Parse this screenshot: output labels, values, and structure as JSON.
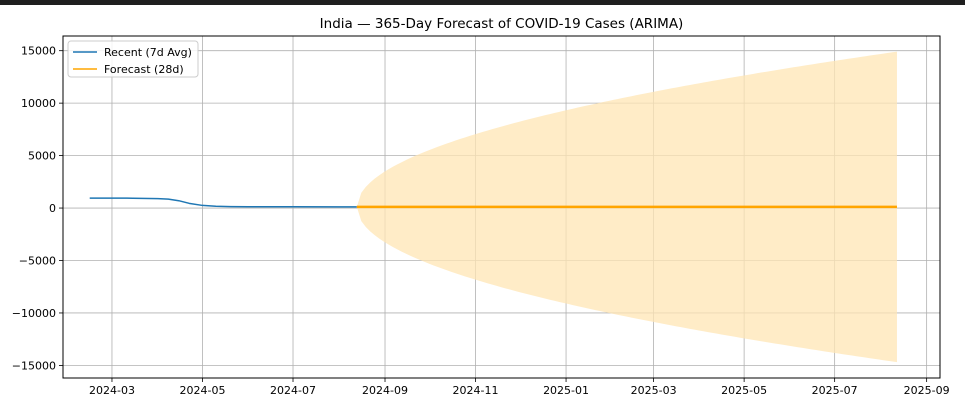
{
  "chart_data": {
    "type": "line",
    "title": "India — 365-Day Forecast of COVID-19 Cases (ARIMA)",
    "xlabel": "",
    "ylabel": "",
    "xlim": [
      "2024-01-28",
      "2025-09-10"
    ],
    "ylim": [
      -16200,
      16400
    ],
    "grid": true,
    "legend_position": "top-left",
    "x_ticks": [
      "2024-03",
      "2024-05",
      "2024-07",
      "2024-09",
      "2024-11",
      "2025-01",
      "2025-03",
      "2025-05",
      "2025-07",
      "2025-09"
    ],
    "y_ticks": [
      15000,
      10000,
      5000,
      0,
      -5000,
      -10000,
      -15000
    ],
    "y_tick_labels": [
      "15000",
      "10000",
      "5000",
      "0",
      "−5000",
      "−10000",
      "−15000"
    ],
    "colors": {
      "recent": "#1f77b4",
      "forecast": "#ffa500",
      "band": "#ffe5b4"
    },
    "series": [
      {
        "name": "Recent (7d Avg)",
        "x": [
          "2024-02-15",
          "2024-03-01",
          "2024-03-15",
          "2024-04-01",
          "2024-04-08",
          "2024-04-15",
          "2024-04-22",
          "2024-05-01",
          "2024-05-10",
          "2024-05-20",
          "2024-06-01",
          "2024-07-01",
          "2024-08-01",
          "2024-08-13"
        ],
        "y": [
          950,
          950,
          940,
          900,
          850,
          700,
          450,
          250,
          170,
          140,
          130,
          120,
          110,
          110
        ]
      },
      {
        "name": "Forecast (28d)",
        "x": [
          "2024-08-13",
          "2025-08-12"
        ],
        "y": [
          110,
          110
        ]
      }
    ],
    "confidence_band": {
      "x_start": "2024-08-13",
      "x_end": "2025-08-12",
      "center": 110,
      "half_width_at_end": 14800
    }
  }
}
